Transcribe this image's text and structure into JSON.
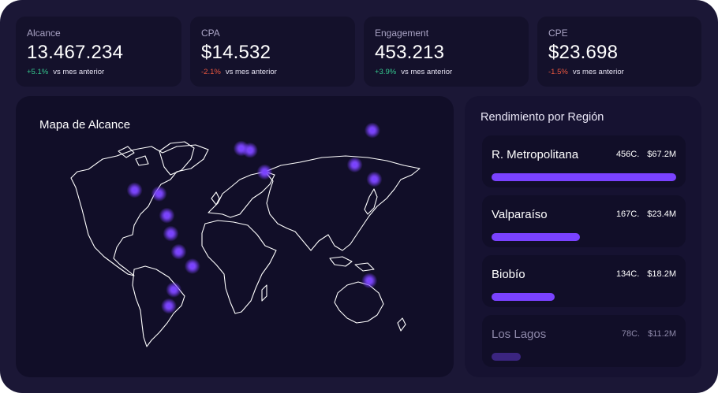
{
  "kpis": [
    {
      "label": "Alcance",
      "value": "13.467.234",
      "delta": "+5.1%",
      "delta_dir": "pos",
      "note": "vs mes anterior"
    },
    {
      "label": "CPA",
      "value": "$14.532",
      "delta": "-2.1%",
      "delta_dir": "neg",
      "note": "vs mes anterior"
    },
    {
      "label": "Engagement",
      "value": "453.213",
      "delta": "+3.9%",
      "delta_dir": "pos",
      "note": "vs mes anterior"
    },
    {
      "label": "CPE",
      "value": "$23.698",
      "delta": "-1.5%",
      "delta_dir": "neg",
      "note": "vs mes anterior"
    }
  ],
  "map": {
    "title": "Mapa de Alcance",
    "hotspots": [
      {
        "lon": -105,
        "lat": 22
      },
      {
        "lon": -80,
        "lat": 20
      },
      {
        "lon": -72,
        "lat": 8
      },
      {
        "lon": -68,
        "lat": -2
      },
      {
        "lon": -60,
        "lat": -12
      },
      {
        "lon": -46,
        "lat": -20
      },
      {
        "lon": -65,
        "lat": -33
      },
      {
        "lon": -70,
        "lat": -42
      },
      {
        "lon": 4,
        "lat": 45
      },
      {
        "lon": 13,
        "lat": 44
      },
      {
        "lon": 28,
        "lat": 32
      },
      {
        "lon": 120,
        "lat": 36
      },
      {
        "lon": 140,
        "lat": 28
      },
      {
        "lon": 138,
        "lat": 55
      },
      {
        "lon": 135,
        "lat": -28
      }
    ],
    "colors": {
      "land_stroke": "#ffffff",
      "hotspot": "#7a42ff"
    }
  },
  "regions": {
    "title": "Rendimiento por Región",
    "items": [
      {
        "name": "R. Metropolitana",
        "count": "456C.",
        "amount": "$67.2M",
        "share": 1.0
      },
      {
        "name": "Valparaíso",
        "count": "167C.",
        "amount": "$23.4M",
        "share": 0.48
      },
      {
        "name": "Biobío",
        "count": "134C.",
        "amount": "$18.2M",
        "share": 0.34
      },
      {
        "name": "Los Lagos",
        "count": "78C.",
        "amount": "$11.2M",
        "share": 0.16
      }
    ],
    "colors": {
      "bar": "#7a42ff",
      "bar_dim": "#3b2580"
    }
  }
}
